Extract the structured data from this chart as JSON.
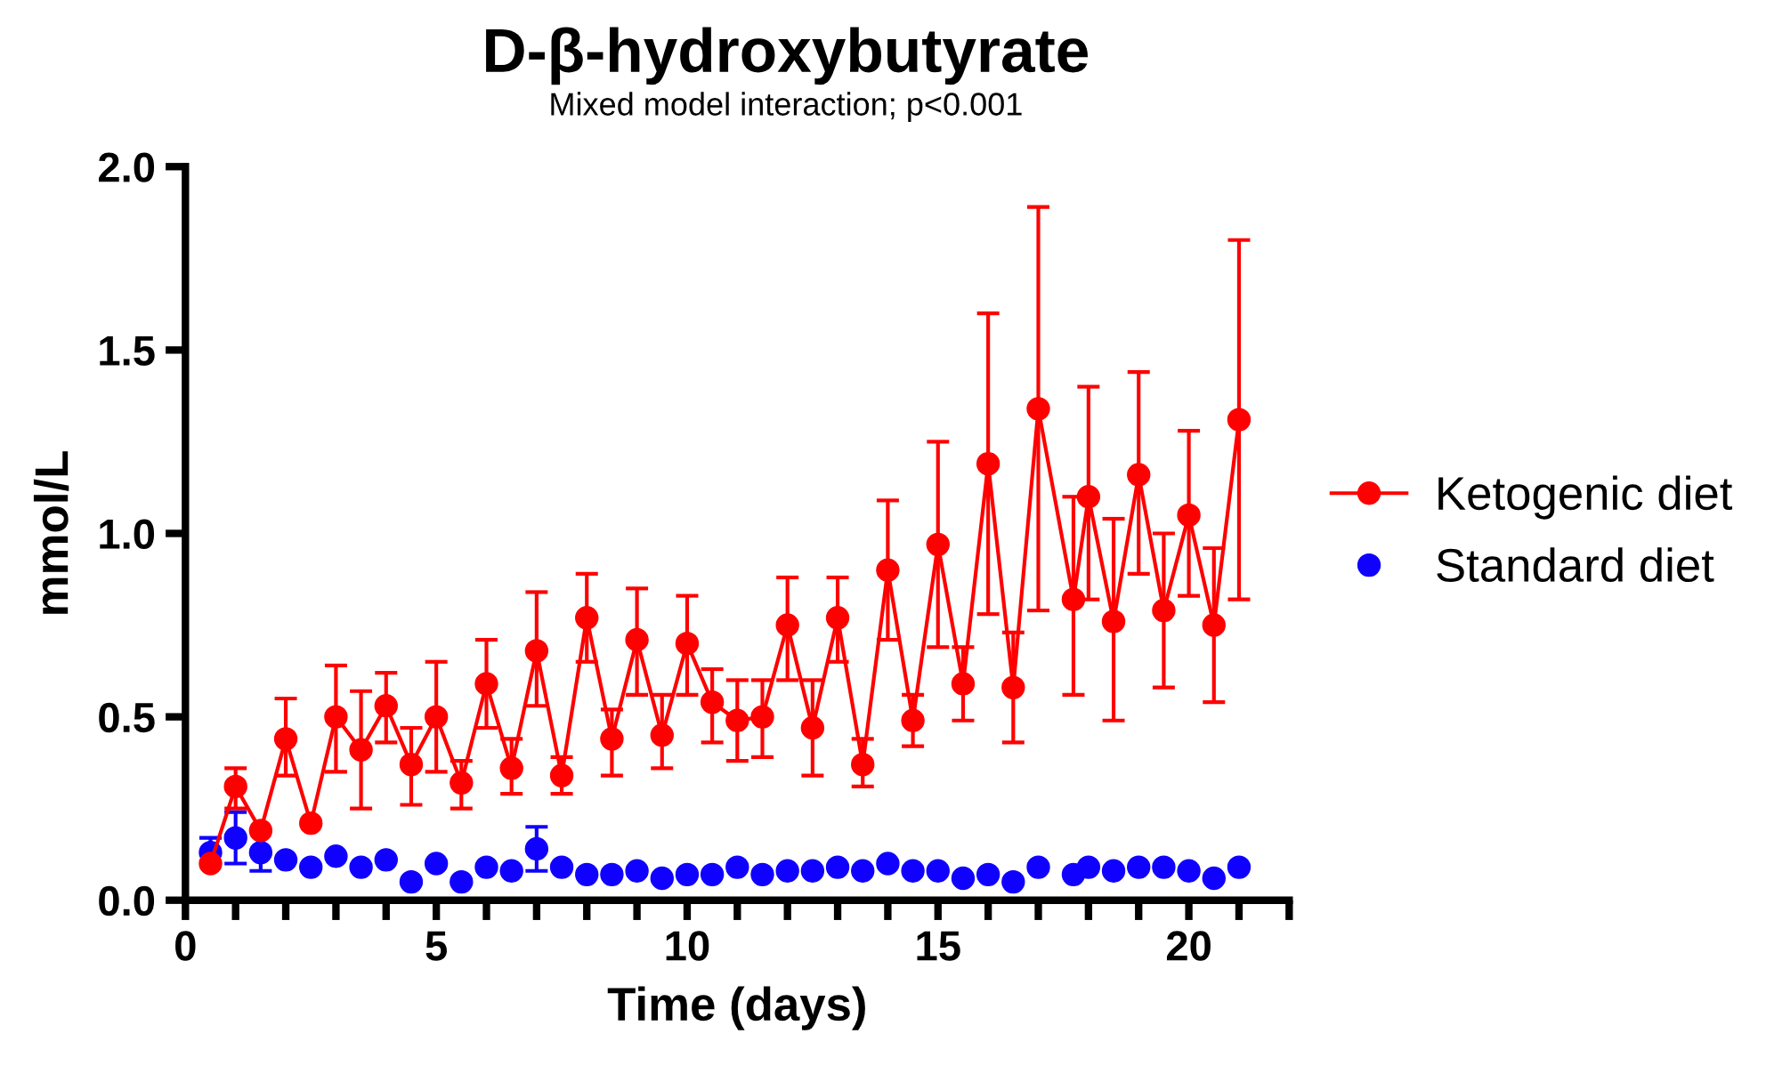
{
  "chart_data": {
    "type": "line",
    "title": "D-β-hydroxybutyrate",
    "subtitle": "Mixed model interaction; p<0.001",
    "xlabel": "Time (days)",
    "ylabel": "mmol/L",
    "xlim": [
      0,
      22
    ],
    "xticks": [
      0,
      5,
      10,
      15,
      20
    ],
    "ylim": [
      0,
      2
    ],
    "yticks": [
      {
        "value": 0,
        "label": "0.0"
      },
      {
        "value": 0.5,
        "label": "0.5"
      },
      {
        "value": 1,
        "label": "1.0"
      },
      {
        "value": 1.5,
        "label": "1.5"
      },
      {
        "value": 2,
        "label": "2.0"
      }
    ],
    "grid": false,
    "legend": "right",
    "marker": "circle",
    "series": [
      {
        "name": "Ketogenic diet",
        "type": "line",
        "color": "#ff0000",
        "x": [
          0.5,
          1,
          1.5,
          2,
          2.5,
          3,
          3.5,
          4,
          4.5,
          5,
          5.5,
          6,
          6.5,
          7,
          7.5,
          8,
          8.5,
          9,
          9.5,
          10,
          10.5,
          11,
          11.5,
          12,
          12.5,
          13,
          13.5,
          14,
          14.5,
          15,
          15.5,
          16,
          16.5,
          17,
          17.7,
          18,
          18.5,
          19,
          19.5,
          20,
          20.5,
          21
        ],
        "values": [
          0.1,
          0.31,
          0.19,
          0.44,
          0.21,
          0.5,
          0.41,
          0.53,
          0.37,
          0.5,
          0.32,
          0.59,
          0.36,
          0.68,
          0.34,
          0.77,
          0.44,
          0.71,
          0.45,
          0.7,
          0.54,
          0.49,
          0.5,
          0.75,
          0.47,
          0.77,
          0.37,
          0.9,
          0.49,
          0.97,
          0.59,
          1.19,
          0.58,
          1.34,
          0.82,
          1.1,
          0.76,
          1.16,
          0.79,
          1.05,
          0.75,
          1.31
        ],
        "errors": [
          null,
          [
            0.25,
            0.36
          ],
          null,
          [
            0.34,
            0.55
          ],
          null,
          [
            0.35,
            0.64
          ],
          [
            0.25,
            0.57
          ],
          [
            0.43,
            0.62
          ],
          [
            0.26,
            0.47
          ],
          [
            0.35,
            0.65
          ],
          [
            0.25,
            0.38
          ],
          [
            0.47,
            0.71
          ],
          [
            0.29,
            0.44
          ],
          [
            0.53,
            0.84
          ],
          [
            0.29,
            0.39
          ],
          [
            0.65,
            0.89
          ],
          [
            0.34,
            0.52
          ],
          [
            0.56,
            0.85
          ],
          [
            0.36,
            0.56
          ],
          [
            0.56,
            0.83
          ],
          [
            0.43,
            0.63
          ],
          [
            0.38,
            0.6
          ],
          [
            0.39,
            0.6
          ],
          [
            0.6,
            0.88
          ],
          [
            0.34,
            0.6
          ],
          [
            0.65,
            0.88
          ],
          [
            0.31,
            0.44
          ],
          [
            0.71,
            1.09
          ],
          [
            0.42,
            0.56
          ],
          [
            0.69,
            1.25
          ],
          [
            0.49,
            0.69
          ],
          [
            0.78,
            1.6
          ],
          [
            0.43,
            0.73
          ],
          [
            0.79,
            1.89
          ],
          [
            0.56,
            1.1
          ],
          [
            0.82,
            1.4
          ],
          [
            0.49,
            1.04
          ],
          [
            0.89,
            1.44
          ],
          [
            0.58,
            1.0
          ],
          [
            0.83,
            1.28
          ],
          [
            0.54,
            0.96
          ],
          [
            0.82,
            1.8
          ]
        ]
      },
      {
        "name": "Standard diet",
        "type": "scatter",
        "color": "#0f00ff",
        "x": [
          0.5,
          1,
          1.5,
          2,
          2.5,
          3,
          3.5,
          4,
          4.5,
          5,
          5.5,
          6,
          6.5,
          7,
          7.5,
          8,
          8.5,
          9,
          9.5,
          10,
          10.5,
          11,
          11.5,
          12,
          12.5,
          13,
          13.5,
          14,
          14.5,
          15,
          15.5,
          16,
          16.5,
          17,
          17.7,
          18,
          18.5,
          19,
          19.5,
          20,
          20.5,
          21
        ],
        "values": [
          0.13,
          0.17,
          0.13,
          0.11,
          0.09,
          0.12,
          0.09,
          0.11,
          0.05,
          0.1,
          0.05,
          0.09,
          0.08,
          0.14,
          0.09,
          0.07,
          0.07,
          0.08,
          0.06,
          0.07,
          0.07,
          0.09,
          0.07,
          0.08,
          0.08,
          0.09,
          0.08,
          0.1,
          0.08,
          0.08,
          0.06,
          0.07,
          0.05,
          0.09,
          0.07,
          0.09,
          0.08,
          0.09,
          0.09,
          0.08,
          0.06,
          0.09
        ],
        "errors": [
          [
            0.13,
            0.17
          ],
          [
            0.1,
            0.24
          ],
          [
            0.08,
            0.13
          ],
          null,
          null,
          null,
          null,
          null,
          null,
          null,
          null,
          null,
          null,
          [
            0.08,
            0.2
          ],
          null,
          null,
          null,
          null,
          null,
          null,
          null,
          null,
          null,
          null,
          null,
          null,
          null,
          null,
          null,
          null,
          null,
          null,
          null,
          null,
          null,
          null,
          null,
          null,
          null,
          null,
          null,
          null
        ]
      }
    ]
  }
}
